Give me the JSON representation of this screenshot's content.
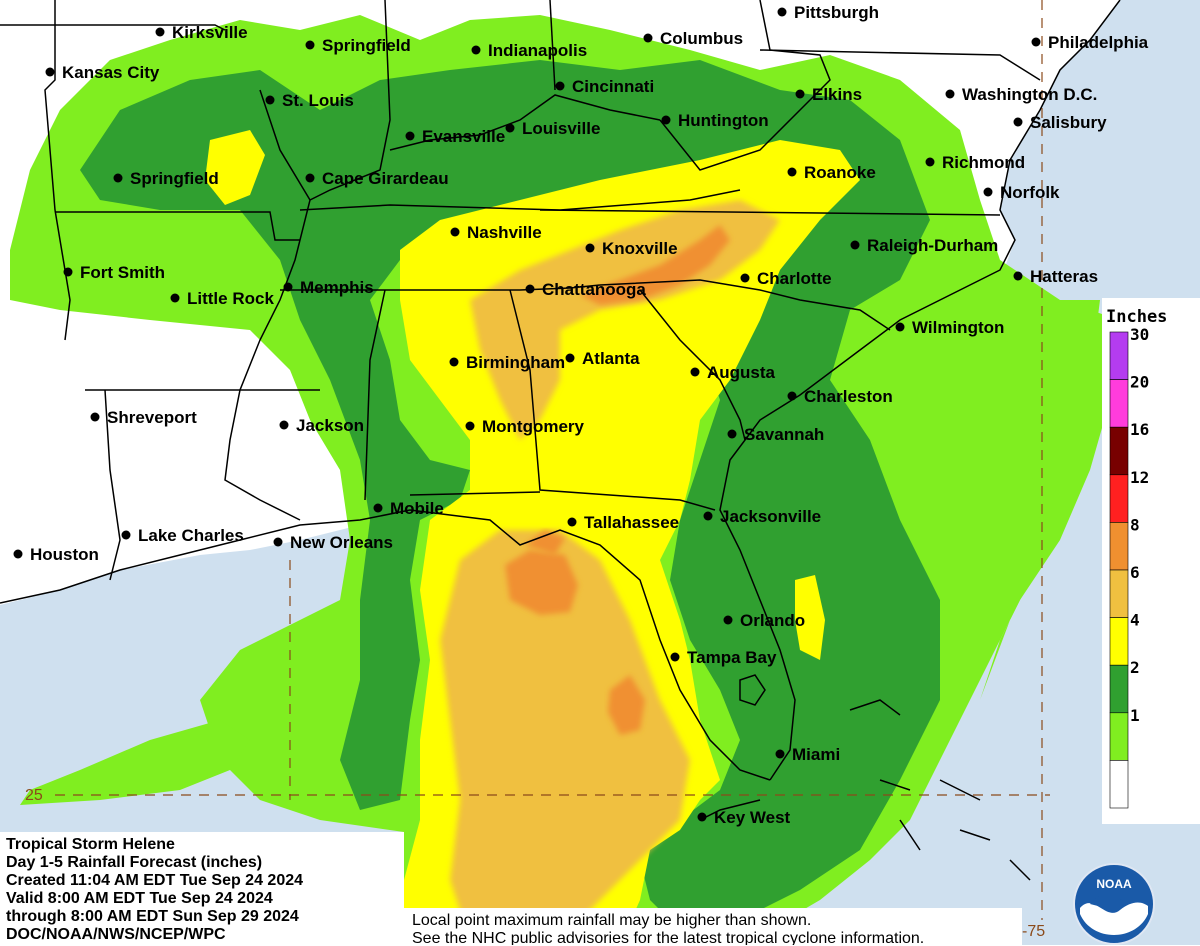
{
  "title_block": {
    "line1": "Tropical Storm Helene",
    "line2": "Day 1-5 Rainfall Forecast (inches)",
    "line3": "Created 11:04 AM EDT Tue Sep 24 2024",
    "line4": "Valid 8:00 AM EDT Tue Sep 24 2024",
    "line5": "through 8:00 AM EDT Sun Sep 29 2024",
    "line6": "DOC/NOAA/NWS/NCEP/WPC"
  },
  "note": {
    "line1": "Local point maximum rainfall may be higher than shown.",
    "line2": "See the NHC public advisories for the latest tropical cyclone information."
  },
  "legend": {
    "title": "Inches",
    "bins": [
      {
        "label": "30",
        "color": "#b43cf0"
      },
      {
        "label": "20",
        "color": "#ff3cdc"
      },
      {
        "label": "16",
        "color": "#780000"
      },
      {
        "label": "12",
        "color": "#ff2020"
      },
      {
        "label": "8",
        "color": "#f09030"
      },
      {
        "label": "6",
        "color": "#f0c040"
      },
      {
        "label": "4",
        "color": "#ffff00"
      },
      {
        "label": "2",
        "color": "#30a030"
      },
      {
        "label": "1",
        "color": "#80ee20"
      },
      {
        "label": "",
        "color": "#ffffff"
      }
    ]
  },
  "grid_labels": {
    "lat": "25",
    "lon": "-75"
  },
  "logo_text": "NOAA",
  "cities": [
    {
      "name": "Kirksville"
    },
    {
      "name": "Springfield"
    },
    {
      "name": "Indianapolis"
    },
    {
      "name": "Columbus"
    },
    {
      "name": "Pittsburgh"
    },
    {
      "name": "Philadelphia"
    },
    {
      "name": "Kansas City"
    },
    {
      "name": "Cincinnati"
    },
    {
      "name": "St. Louis"
    },
    {
      "name": "Elkins"
    },
    {
      "name": "Washington D.C."
    },
    {
      "name": "Evansville"
    },
    {
      "name": "Louisville"
    },
    {
      "name": "Huntington"
    },
    {
      "name": "Salisbury"
    },
    {
      "name": "Springfield"
    },
    {
      "name": "Cape Girardeau"
    },
    {
      "name": "Roanoke"
    },
    {
      "name": "Richmond"
    },
    {
      "name": "Norfolk"
    },
    {
      "name": "Nashville"
    },
    {
      "name": "Knoxville"
    },
    {
      "name": "Raleigh-Durham"
    },
    {
      "name": "Fort Smith"
    },
    {
      "name": "Memphis"
    },
    {
      "name": "Chattanooga"
    },
    {
      "name": "Charlotte"
    },
    {
      "name": "Hatteras"
    },
    {
      "name": "Little Rock"
    },
    {
      "name": "Wilmington"
    },
    {
      "name": "Birmingham"
    },
    {
      "name": "Atlanta"
    },
    {
      "name": "Augusta"
    },
    {
      "name": "Charleston"
    },
    {
      "name": "Shreveport"
    },
    {
      "name": "Jackson"
    },
    {
      "name": "Montgomery"
    },
    {
      "name": "Savannah"
    },
    {
      "name": "Mobile"
    },
    {
      "name": "Tallahassee"
    },
    {
      "name": "Jacksonville"
    },
    {
      "name": "Lake Charles"
    },
    {
      "name": "New Orleans"
    },
    {
      "name": "Houston"
    },
    {
      "name": "Orlando"
    },
    {
      "name": "Tampa Bay"
    },
    {
      "name": "Miami"
    },
    {
      "name": "Key West"
    }
  ]
}
